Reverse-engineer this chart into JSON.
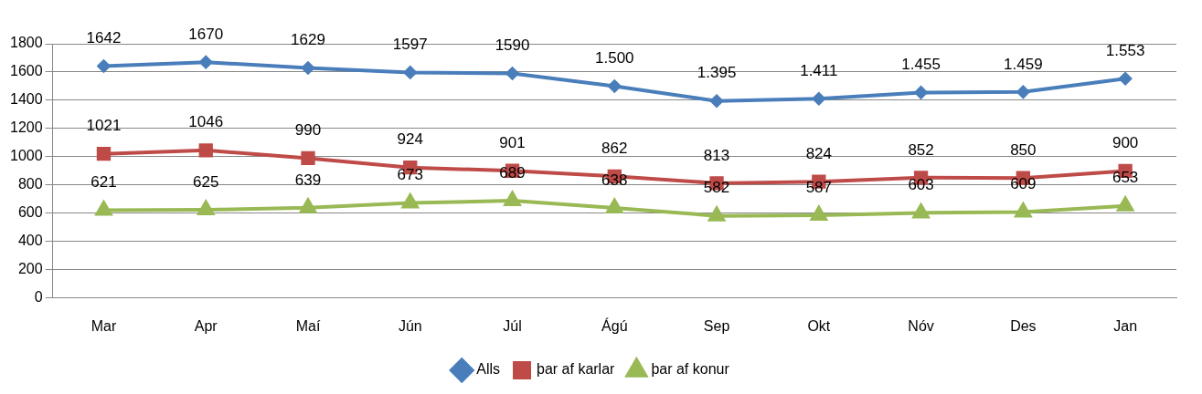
{
  "chart_data": {
    "type": "line",
    "categories": [
      "Mar",
      "Apr",
      "Maí",
      "Jún",
      "Júl",
      "Ágú",
      "Sep",
      "Okt",
      "Nóv",
      "Des",
      "Jan"
    ],
    "ylim": [
      0,
      1800
    ],
    "yticks": [
      0,
      200,
      400,
      600,
      800,
      1000,
      1200,
      1400,
      1600,
      1800
    ],
    "grid": "y",
    "legend": "bottom",
    "line_style": "solid",
    "series": [
      {
        "name": "Alls",
        "color": "#4a7ebb",
        "marker": "diamond",
        "values": [
          1642,
          1670,
          1629,
          1597,
          1590,
          1500,
          1395,
          1411,
          1455,
          1459,
          1553
        ],
        "value_labels": [
          "1642",
          "1670",
          "1629",
          "1597",
          "1590",
          "1.500",
          "1.395",
          "1.411",
          "1.455",
          "1.459",
          "1.553"
        ]
      },
      {
        "name": "þar af karlar",
        "color": "#be4b48",
        "marker": "square",
        "values": [
          1021,
          1046,
          990,
          924,
          901,
          862,
          813,
          824,
          852,
          850,
          900
        ],
        "value_labels": [
          "1021",
          "1046",
          "990",
          "924",
          "901",
          "862",
          "813",
          "824",
          "852",
          "850",
          "900"
        ]
      },
      {
        "name": "þar af konur",
        "color": "#98b954",
        "marker": "triangle",
        "values": [
          621,
          625,
          639,
          673,
          689,
          638,
          582,
          587,
          603,
          609,
          653
        ],
        "value_labels": [
          "621",
          "625",
          "639",
          "673",
          "689",
          "638",
          "582",
          "587",
          "603",
          "609",
          "653"
        ]
      }
    ]
  }
}
